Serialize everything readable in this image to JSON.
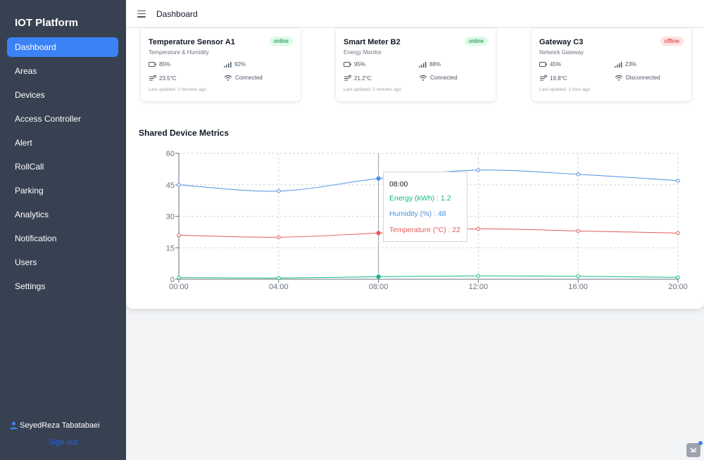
{
  "sidebar": {
    "brand": "IOT Platform",
    "items": [
      {
        "label": "Dashboard",
        "active": true
      },
      {
        "label": "Areas"
      },
      {
        "label": "Devices"
      },
      {
        "label": "Access Controller"
      },
      {
        "label": "Alert"
      },
      {
        "label": "RollCall"
      },
      {
        "label": "Parking"
      },
      {
        "label": "Analytics"
      },
      {
        "label": "Notification"
      },
      {
        "label": "Users"
      },
      {
        "label": "Settings"
      }
    ],
    "user": "SeyedReza Tabatabaei",
    "signout": "Sign out"
  },
  "topbar": {
    "title": "Dashboard",
    "menu_icon": "hamburger-menu-icon"
  },
  "devices": [
    {
      "name": "Temperature Sensor A1",
      "type": "Temperature & Humidity",
      "status": "online",
      "battery": "85%",
      "signal": "92%",
      "temperature": "23.5°C",
      "connection": "Connected",
      "updated": "Last updated: 2 minutes ago"
    },
    {
      "name": "Smart Meter B2",
      "type": "Energy Monitor",
      "status": "online",
      "battery": "95%",
      "signal": "88%",
      "temperature": "21.2°C",
      "connection": "Connected",
      "updated": "Last updated: 5 minutes ago"
    },
    {
      "name": "Gateway C3",
      "type": "Network Gateway",
      "status": "offline",
      "battery": "45%",
      "signal": "23%",
      "temperature": "19.8°C",
      "connection": "Disconnected",
      "updated": "Last updated: 1 hour ago"
    }
  ],
  "colors": {
    "energy": "#10b981",
    "humidity": "#4a90e2",
    "temperature": "#e05a5a",
    "accent": "#3b82f6"
  },
  "metrics_title": "Shared Device Metrics",
  "chart_data": {
    "type": "line",
    "title": "Shared Device Metrics",
    "categories": [
      "00:00",
      "04:00",
      "08:00",
      "12:00",
      "16:00",
      "20:00"
    ],
    "series": [
      {
        "name": "Energy (kWh)",
        "values": [
          0.8,
          0.6,
          1.2,
          1.6,
          1.4,
          0.9
        ]
      },
      {
        "name": "Humidity (%)",
        "values": [
          45,
          42,
          48,
          52,
          50,
          47
        ]
      },
      {
        "name": "Temperature (°C)",
        "values": [
          21,
          20,
          22,
          24,
          23,
          22
        ]
      }
    ],
    "ylim": [
      0,
      60
    ],
    "yticks": [
      "0",
      "15",
      "30",
      "45",
      "60"
    ],
    "grid": true,
    "tooltip": {
      "title": "08:00",
      "lines": [
        "Energy (kWh) : 1.2",
        "Humidity (%) : 48",
        "Temperature (°C) : 22"
      ]
    }
  }
}
